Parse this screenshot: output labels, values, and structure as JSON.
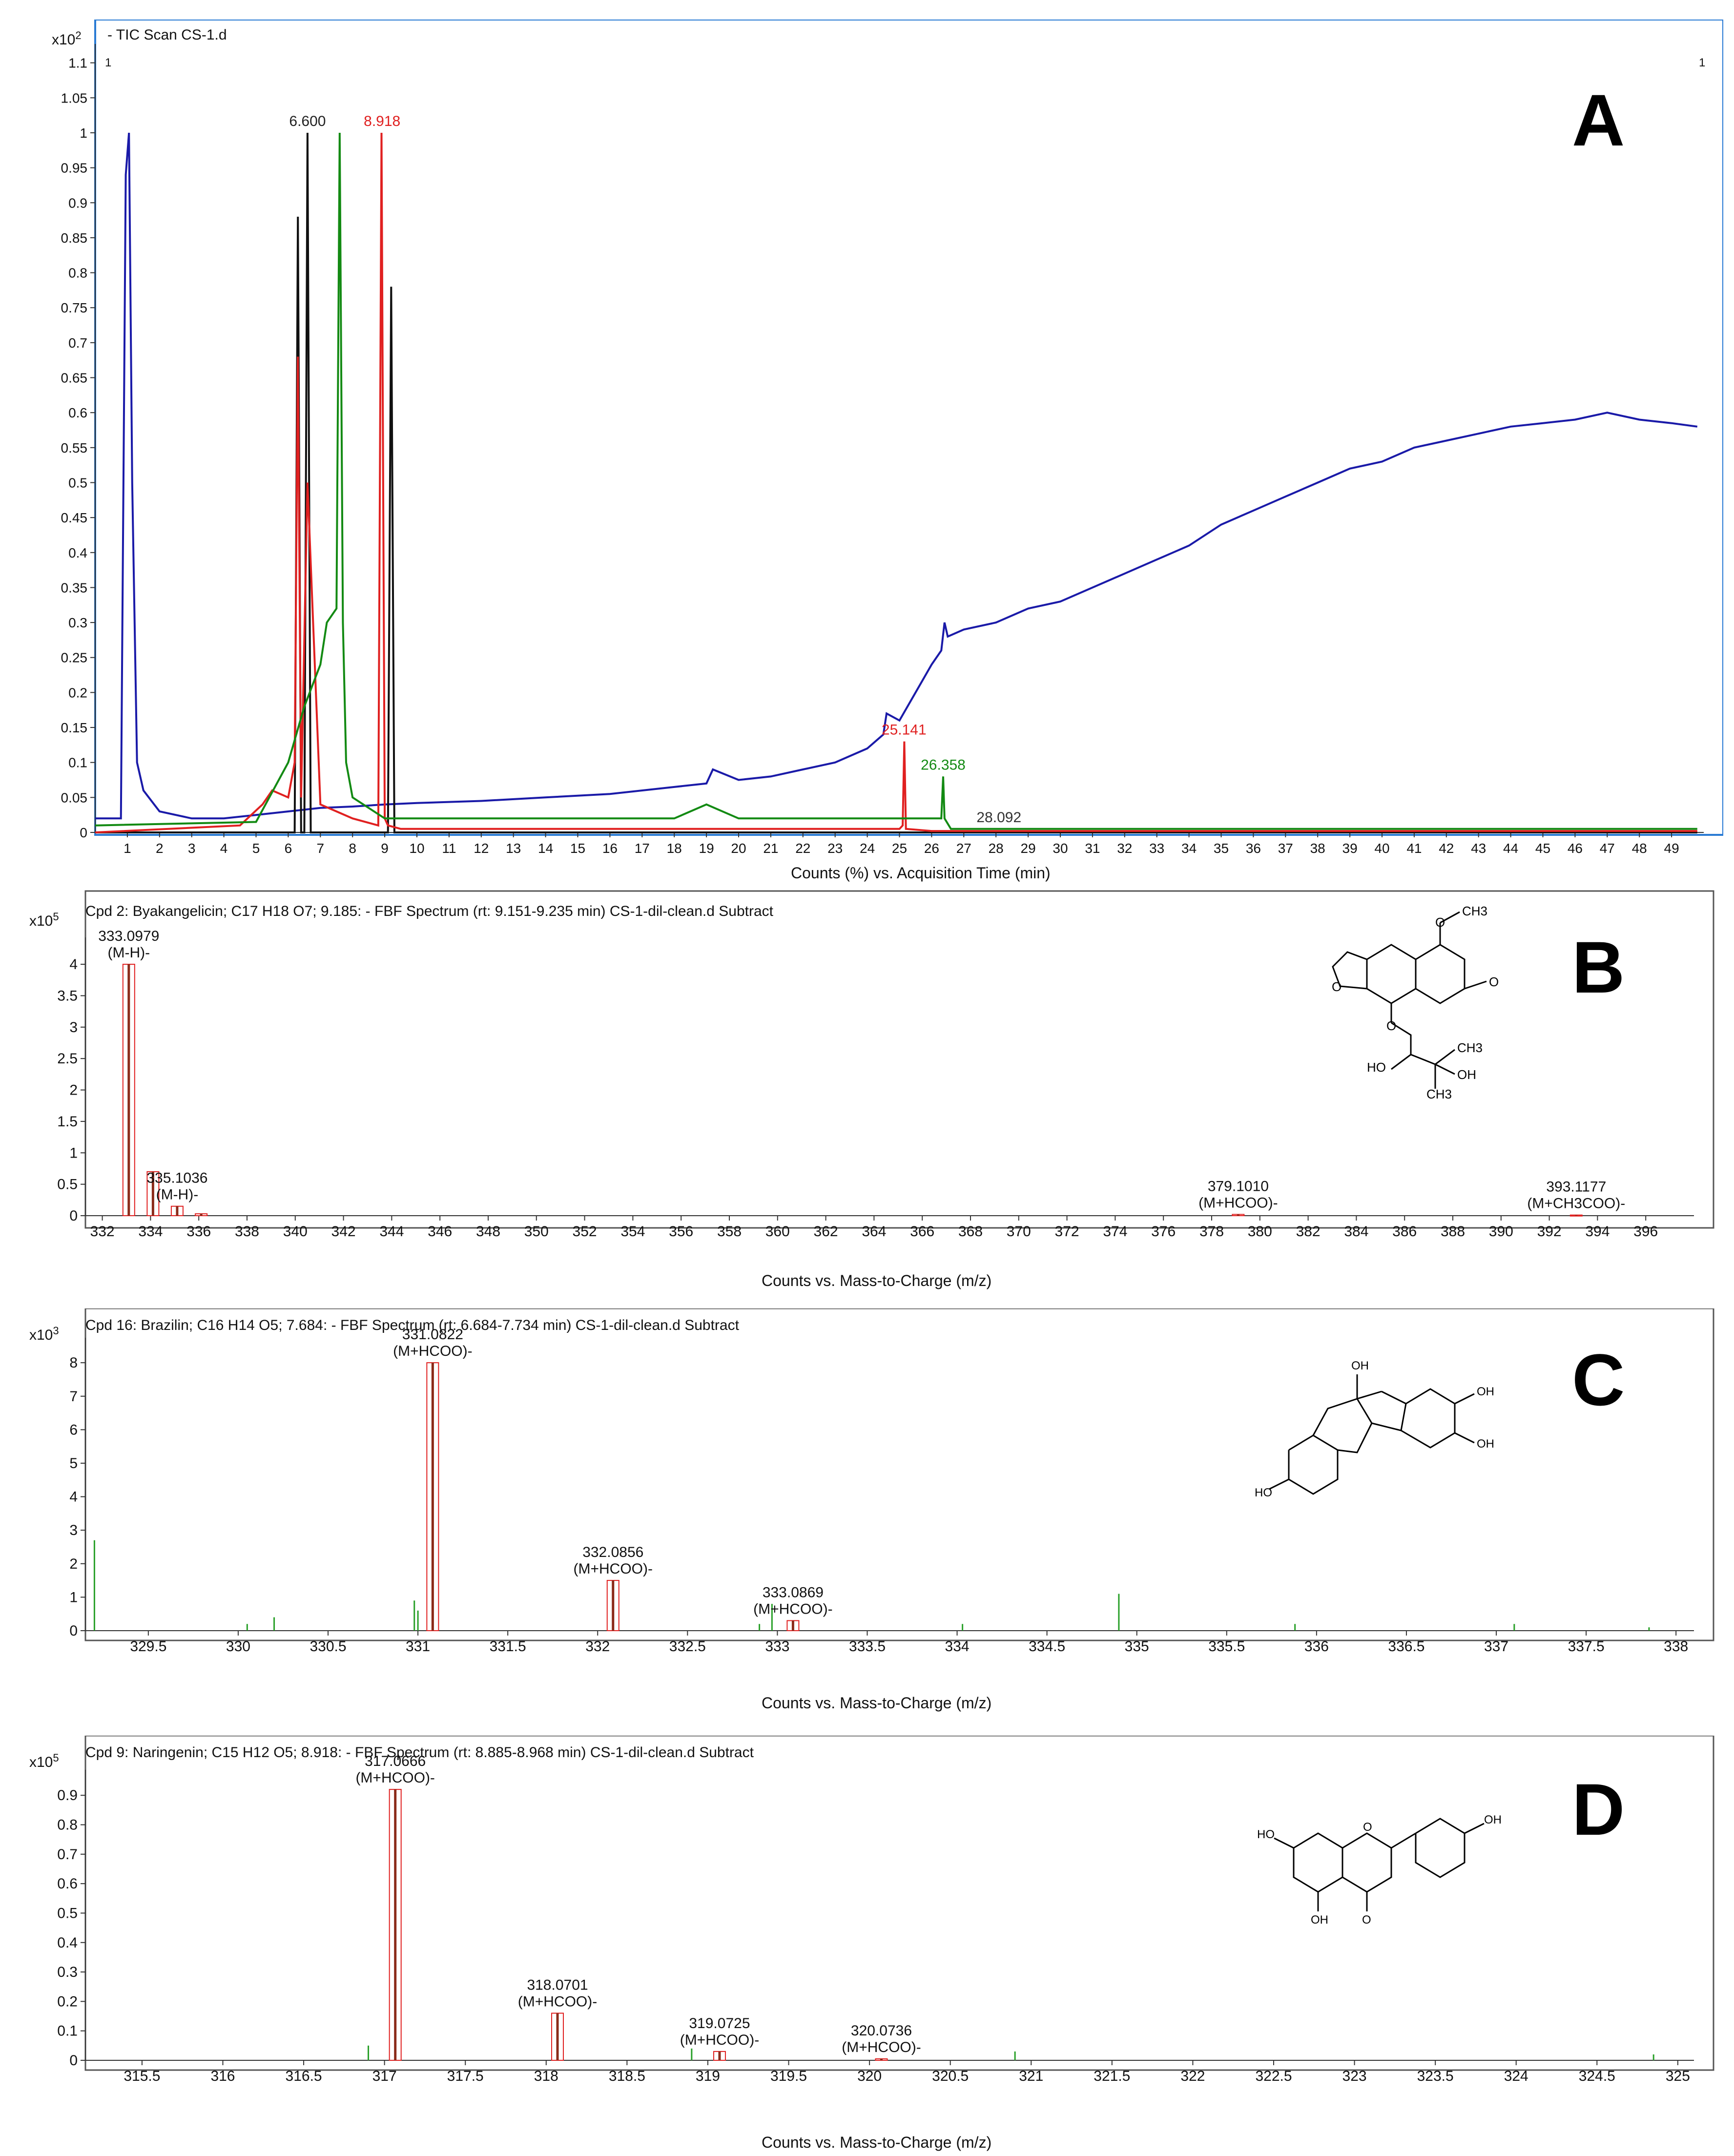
{
  "panels": [
    {
      "id": "A",
      "letter": "A",
      "title": "- TIC Scan CS-1.d",
      "corner_left": "1",
      "corner_right": "1",
      "exponent_base": "x10",
      "exponent_power": "2",
      "xlabel": "Counts (%) vs. Acquisition Time (min)",
      "chart_data": {
        "type": "line",
        "xlim": [
          0,
          50
        ],
        "ylim": [
          0,
          1.12
        ],
        "xticks": [
          1,
          2,
          3,
          4,
          5,
          6,
          7,
          8,
          9,
          10,
          11,
          12,
          13,
          14,
          15,
          16,
          17,
          18,
          19,
          20,
          21,
          22,
          23,
          24,
          25,
          26,
          27,
          28,
          29,
          30,
          31,
          32,
          33,
          34,
          35,
          36,
          37,
          38,
          39,
          40,
          41,
          42,
          43,
          44,
          45,
          46,
          47,
          48,
          49
        ],
        "yticks": [
          0,
          0.05,
          0.1,
          0.15,
          0.2,
          0.25,
          0.3,
          0.35,
          0.4,
          0.45,
          0.5,
          0.55,
          0.6,
          0.65,
          0.7,
          0.75,
          0.8,
          0.85,
          0.9,
          0.95,
          1,
          1.05,
          1.1
        ],
        "series": [
          {
            "color": "#1a1aa8",
            "x": [
              0,
              0.8,
              0.95,
              1.05,
              1.15,
              1.3,
              1.5,
              2,
              3,
              4,
              5,
              6,
              7,
              8,
              9,
              10,
              12,
              14,
              16,
              18,
              19,
              19.2,
              20,
              21,
              22,
              23,
              24,
              24.5,
              24.6,
              25,
              25.5,
              26,
              26.3,
              26.4,
              26.5,
              27,
              28,
              29,
              30,
              31,
              32,
              33,
              34,
              35,
              36,
              37,
              38,
              39,
              40,
              41,
              42,
              43,
              44,
              45,
              46,
              47,
              48,
              49,
              49.8
            ],
            "y": [
              0.02,
              0.02,
              0.94,
              1.0,
              0.5,
              0.1,
              0.06,
              0.03,
              0.02,
              0.02,
              0.025,
              0.03,
              0.035,
              0.037,
              0.04,
              0.042,
              0.045,
              0.05,
              0.055,
              0.065,
              0.07,
              0.09,
              0.075,
              0.08,
              0.09,
              0.1,
              0.12,
              0.14,
              0.17,
              0.16,
              0.2,
              0.24,
              0.26,
              0.3,
              0.28,
              0.29,
              0.3,
              0.32,
              0.33,
              0.35,
              0.37,
              0.39,
              0.41,
              0.44,
              0.46,
              0.48,
              0.5,
              0.52,
              0.53,
              0.55,
              0.56,
              0.57,
              0.58,
              0.585,
              0.59,
              0.6,
              0.59,
              0.585,
              0.58
            ]
          },
          {
            "color": "#111111",
            "x": [
              0,
              6,
              6.2,
              6.3,
              6.4,
              6.5,
              6.6,
              6.7,
              7,
              9.1,
              9.2,
              9.3,
              9.4,
              49.8
            ],
            "y": [
              0,
              0,
              0,
              0.88,
              0,
              0,
              1.0,
              0,
              0,
              0,
              0.78,
              0,
              0,
              0
            ]
          },
          {
            "color": "#e02020",
            "x": [
              0,
              4.5,
              5.2,
              5.5,
              6,
              6.2,
              6.3,
              6.4,
              6.6,
              7,
              7.5,
              8,
              8.8,
              8.9,
              9.0,
              9.1,
              9.5,
              25,
              25.1,
              25.15,
              25.2,
              26,
              49.8
            ],
            "y": [
              0,
              0.01,
              0.04,
              0.06,
              0.05,
              0.1,
              0.68,
              0.05,
              0.5,
              0.04,
              0.03,
              0.02,
              0.01,
              1.0,
              0.02,
              0.01,
              0.005,
              0.005,
              0.01,
              0.13,
              0.005,
              0.002,
              0.002
            ]
          },
          {
            "color": "#138a13",
            "x": [
              0,
              5,
              6,
              6.5,
              7,
              7.2,
              7.5,
              7.6,
              7.7,
              7.8,
              8,
              9,
              10,
              12,
              14,
              16,
              18,
              19,
              20,
              22,
              24,
              26,
              26.3,
              26.358,
              26.4,
              26.6,
              49.8
            ],
            "y": [
              0.01,
              0.015,
              0.1,
              0.18,
              0.24,
              0.3,
              0.32,
              1.0,
              0.3,
              0.1,
              0.05,
              0.02,
              0.02,
              0.02,
              0.02,
              0.02,
              0.02,
              0.04,
              0.02,
              0.02,
              0.02,
              0.02,
              0.02,
              0.08,
              0.02,
              0.005,
              0.005
            ]
          }
        ],
        "peak_labels": [
          {
            "text": "6.600",
            "x": 6.6,
            "y": 1.0,
            "color": "#222222"
          },
          {
            "text": "8.918",
            "x": 8.918,
            "y": 1.0,
            "color": "#e02020"
          },
          {
            "text": "25.141",
            "x": 25.141,
            "y": 0.13,
            "color": "#e02020"
          },
          {
            "text": "26.358",
            "x": 26.358,
            "y": 0.08,
            "color": "#138a13"
          },
          {
            "text": "28.092",
            "x": 28.092,
            "y": 0.005,
            "color": "#333333"
          }
        ]
      }
    },
    {
      "id": "B",
      "letter": "B",
      "title": "Cpd 2: Byakangelicin; C17 H18 O7; 9.185: - FBF Spectrum (rt: 9.151-9.235 min) CS-1-dil-clean.d  Subtract",
      "exponent_base": "x10",
      "exponent_power": "5",
      "xlabel": "Counts vs. Mass-to-Charge (m/z)",
      "chart_data": {
        "type": "bar",
        "xlim": [
          331.3,
          398
        ],
        "ylim": [
          0,
          4.35
        ],
        "xticks": [
          332,
          334,
          336,
          338,
          340,
          342,
          344,
          346,
          348,
          350,
          352,
          354,
          356,
          358,
          360,
          362,
          364,
          366,
          368,
          370,
          372,
          374,
          376,
          378,
          380,
          382,
          384,
          386,
          388,
          390,
          392,
          394,
          396
        ],
        "yticks": [
          0,
          0.5,
          1,
          1.5,
          2,
          2.5,
          3,
          3.5,
          4
        ],
        "peaks": [
          {
            "x": 333.0979,
            "y": 4.0,
            "label": "333.0979",
            "sub": "(M-H)-"
          },
          {
            "x": 334.1012,
            "y": 0.7
          },
          {
            "x": 335.1036,
            "y": 0.15,
            "label": "335.1036",
            "sub": "(M-H)-"
          },
          {
            "x": 336.1,
            "y": 0.03
          },
          {
            "x": 379.101,
            "y": 0.02,
            "label": "379.1010",
            "sub": "(M+HCOO)-"
          },
          {
            "x": 393.1177,
            "y": 0.01,
            "label": "393.1177",
            "sub": "(M+CH3COO)-"
          }
        ]
      }
    },
    {
      "id": "C",
      "letter": "C",
      "title": "Cpd 16: Brazilin; C16 H14 O5; 7.684: - FBF Spectrum (rt: 6.684-7.734 min) CS-1-dil-clean.d  Subtract",
      "exponent_base": "x10",
      "exponent_power": "3",
      "xlabel": "Counts vs. Mass-to-Charge (m/z)",
      "chart_data": {
        "type": "bar",
        "xlim": [
          329.15,
          338.1
        ],
        "ylim": [
          0,
          8.6
        ],
        "xticks": [
          329.5,
          330,
          330.5,
          331,
          331.5,
          332,
          332.5,
          333,
          333.5,
          334,
          334.5,
          335,
          335.5,
          336,
          336.5,
          337,
          337.5,
          338
        ],
        "yticks": [
          0,
          1,
          2,
          3,
          4,
          5,
          6,
          7,
          8
        ],
        "peaks": [
          {
            "x": 331.0822,
            "y": 8.0,
            "label": "331.0822",
            "sub": "(M+HCOO)-"
          },
          {
            "x": 332.0856,
            "y": 1.5,
            "label": "332.0856",
            "sub": "(M+HCOO)-"
          },
          {
            "x": 333.0869,
            "y": 0.3,
            "label": "333.0869",
            "sub": "(M+HCOO)-"
          }
        ],
        "noise": [
          {
            "x": 329.2,
            "y": 2.7
          },
          {
            "x": 330.2,
            "y": 0.4
          },
          {
            "x": 330.05,
            "y": 0.2
          },
          {
            "x": 330.98,
            "y": 0.9
          },
          {
            "x": 331.0,
            "y": 0.6
          },
          {
            "x": 332.9,
            "y": 0.2
          },
          {
            "x": 332.97,
            "y": 0.8
          },
          {
            "x": 334.03,
            "y": 0.2
          },
          {
            "x": 334.9,
            "y": 1.1
          },
          {
            "x": 335.88,
            "y": 0.2
          },
          {
            "x": 337.1,
            "y": 0.2
          },
          {
            "x": 337.85,
            "y": 0.1
          }
        ]
      }
    },
    {
      "id": "D",
      "letter": "D",
      "title": "Cpd 9: Naringenin; C15 H12 O5; 8.918: - FBF Spectrum (rt: 8.885-8.968 min) CS-1-dil-clean.d  Subtract",
      "exponent_base": "x10",
      "exponent_power": "5",
      "xlabel": "Counts vs. Mass-to-Charge (m/z)",
      "chart_data": {
        "type": "bar",
        "xlim": [
          315.15,
          325.1
        ],
        "ylim": [
          0,
          0.97
        ],
        "xticks": [
          315.5,
          316,
          316.5,
          317,
          317.5,
          318,
          318.5,
          319,
          319.5,
          320,
          320.5,
          321,
          321.5,
          322,
          322.5,
          323,
          323.5,
          324,
          324.5,
          325
        ],
        "yticks": [
          0,
          0.1,
          0.2,
          0.3,
          0.4,
          0.5,
          0.6,
          0.7,
          0.8,
          0.9
        ],
        "peaks": [
          {
            "x": 317.0666,
            "y": 0.92,
            "label": "317.0666",
            "sub": "(M+HCOO)-"
          },
          {
            "x": 318.0701,
            "y": 0.16,
            "label": "318.0701",
            "sub": "(M+HCOO)-"
          },
          {
            "x": 319.0725,
            "y": 0.03,
            "label": "319.0725",
            "sub": "(M+HCOO)-"
          },
          {
            "x": 320.0736,
            "y": 0.005,
            "label": "320.0736",
            "sub": "(M+HCOO)-"
          }
        ],
        "noise": [
          {
            "x": 316.9,
            "y": 0.05
          },
          {
            "x": 318.9,
            "y": 0.04
          },
          {
            "x": 320.9,
            "y": 0.03
          },
          {
            "x": 324.85,
            "y": 0.02
          }
        ]
      }
    }
  ],
  "structures": {
    "B": {
      "labels": [
        "CH3",
        "O",
        "O",
        "O",
        "O",
        "HO",
        "CH3",
        "OH",
        "CH3"
      ]
    },
    "C": {
      "labels": [
        "OH",
        "OH",
        "OH",
        "HO"
      ]
    },
    "D": {
      "labels": [
        "OH",
        "HO",
        "OH",
        "O",
        "O"
      ]
    }
  }
}
